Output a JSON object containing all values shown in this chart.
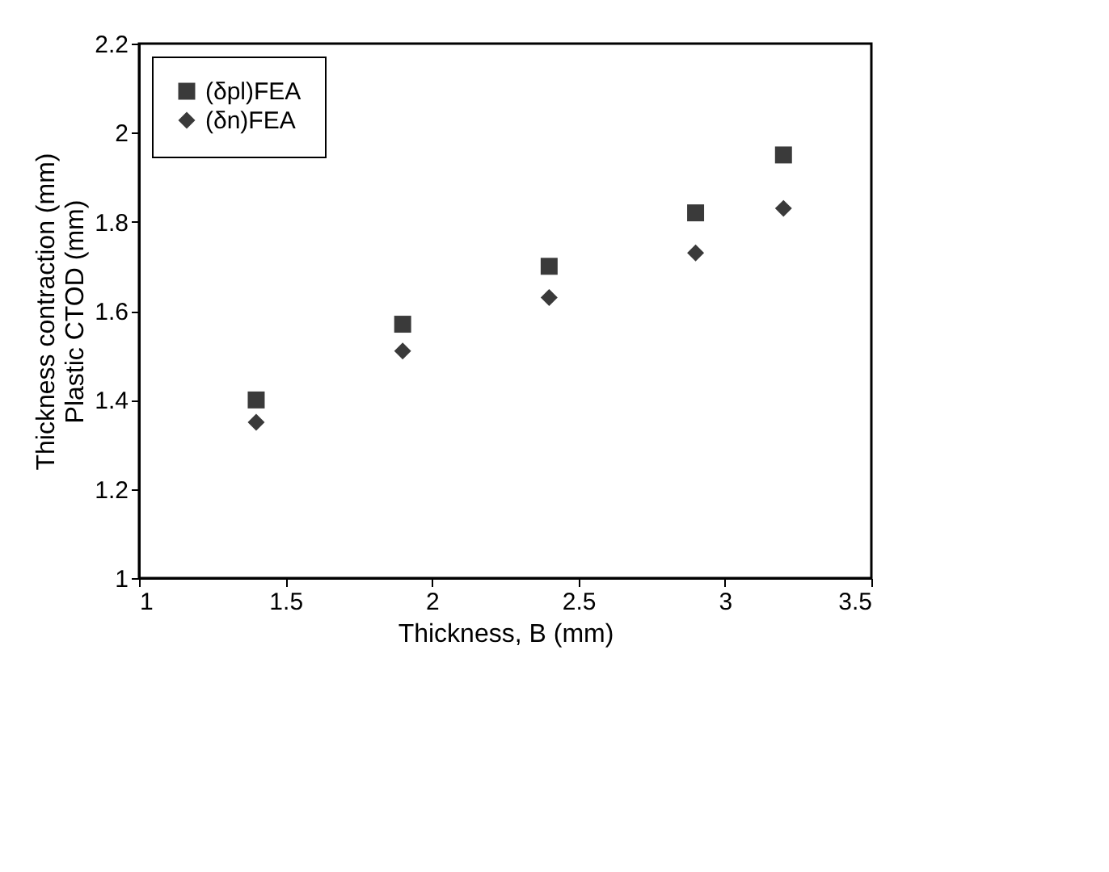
{
  "chart_data": {
    "type": "scatter",
    "xlabel": "Thickness, B (mm)",
    "ylabel": "Thickness contraction (mm)\nPlastic CTOD (mm)",
    "series": [
      {
        "name": "(δpl)FEA",
        "color": "#3a3a3a",
        "marker": "square",
        "x": [
          1.4,
          1.9,
          2.4,
          2.9,
          3.2
        ],
        "values": [
          1.4,
          1.57,
          1.7,
          1.82,
          1.95
        ]
      },
      {
        "name": "(δn)FEA",
        "color": "#3a3a3a",
        "marker": "diamond",
        "x": [
          1.4,
          1.9,
          2.4,
          2.9,
          3.2
        ],
        "values": [
          1.35,
          1.51,
          1.63,
          1.73,
          1.83
        ]
      }
    ],
    "xlim": [
      1,
      3.5
    ],
    "xticks": [
      1,
      1.5,
      2,
      2.5,
      3,
      3.5
    ],
    "ylim": [
      1,
      2.2
    ],
    "yticks": [
      1,
      1.2,
      1.4,
      1.6,
      1.8,
      2,
      2.2
    ],
    "grid": false,
    "legend": "top left"
  }
}
